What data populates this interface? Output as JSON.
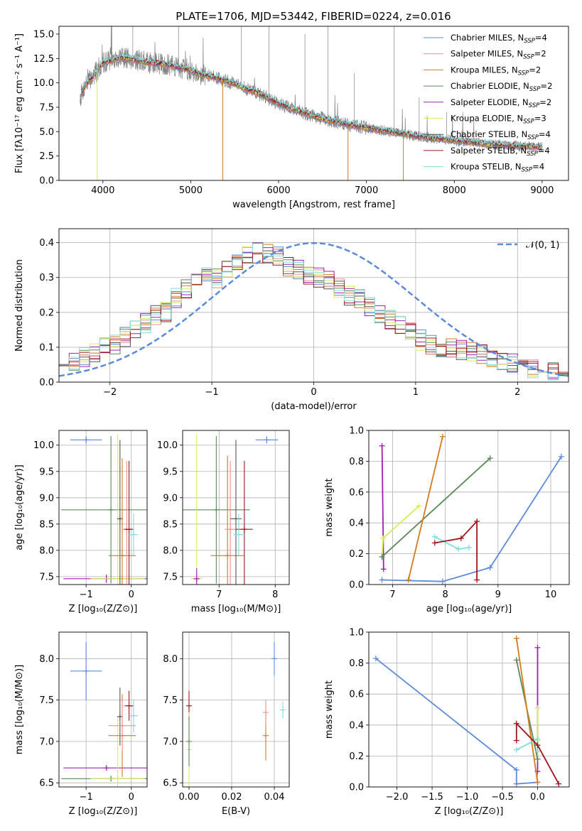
{
  "figure": {
    "title": "PLATE=1706, MJD=53442, FIBERID=0224, z=0.016"
  },
  "colors": {
    "Chabrier MILES": "#5b8bd8",
    "Salpeter MILES": "#f28e8e",
    "Kroupa MILES": "#d47a1e",
    "Chabrier ELODIE": "#5a8a5a",
    "Salpeter ELODIE": "#a020b0",
    "Kroupa ELODIE": "#d8ec5a",
    "Chabrier STELIB": "#555555",
    "Salpeter STELIB": "#a0161d",
    "Kroupa STELIB": "#80dede",
    "data_spectrum": "#808080",
    "normal_curve": "#5b8bd8"
  },
  "chart_data": [
    {
      "id": "spectrum",
      "type": "line",
      "xlabel": "wavelength [Angstrom, rest frame]",
      "ylabel": "Flux [fλ10⁻¹⁷ erg cm⁻² s⁻¹ A⁻¹]",
      "xlim": [
        3500,
        9300
      ],
      "ylim": [
        0,
        15.8
      ],
      "xticks": [
        4000,
        5000,
        6000,
        7000,
        8000,
        9000
      ],
      "yticks": [
        0.0,
        2.5,
        5.0,
        7.5,
        10.0,
        12.5,
        15.0
      ],
      "legend_position": "top-right",
      "grid": false,
      "continuum": {
        "x": [
          3740,
          3800,
          3900,
          4000,
          4100,
          4200,
          4300,
          4400,
          4500,
          4600,
          4700,
          4800,
          4900,
          5000,
          5100,
          5200,
          5300,
          5400,
          5500,
          5600,
          5800,
          6000,
          6200,
          6400,
          6600,
          6800,
          7000,
          7200,
          7400,
          7600,
          7800,
          8000,
          8200,
          8400,
          8600,
          8800,
          9000
        ],
        "y": [
          8.5,
          9.8,
          10.8,
          12.1,
          12.3,
          12.6,
          12.5,
          12.3,
          12.1,
          12.0,
          11.9,
          11.7,
          11.5,
          11.3,
          10.9,
          10.7,
          10.5,
          10.2,
          9.9,
          9.5,
          8.8,
          7.9,
          7.2,
          6.6,
          6.1,
          5.7,
          5.4,
          5.1,
          4.8,
          4.5,
          4.3,
          4.1,
          3.9,
          3.7,
          3.6,
          3.5,
          3.4
        ]
      },
      "absorption_lines": [
        {
          "x": 3934,
          "y": 0
        },
        {
          "x": 5365,
          "y": 0
        },
        {
          "x": 6790,
          "y": 0
        },
        {
          "x": 7420,
          "y": 0
        }
      ],
      "emission_lines": [
        {
          "x": 4102,
          "y": 15.8
        },
        {
          "x": 4340,
          "y": 15.8
        },
        {
          "x": 4861,
          "y": 15.8
        },
        {
          "x": 5577,
          "y": 15.8
        },
        {
          "x": 5890,
          "y": 15.8
        },
        {
          "x": 6300,
          "y": 15.0
        },
        {
          "x": 6563,
          "y": 15.8
        },
        {
          "x": 6863,
          "y": 11.0
        },
        {
          "x": 7316,
          "y": 15.8
        },
        {
          "x": 7600,
          "y": 8.5
        },
        {
          "x": 7913,
          "y": 7.0
        }
      ],
      "series": [
        {
          "name": "Chabrier MILES",
          "nssp": "4"
        },
        {
          "name": "Salpeter MILES",
          "nssp": "2"
        },
        {
          "name": "Kroupa MILES",
          "nssp": "2"
        },
        {
          "name": "Chabrier ELODIE",
          "nssp": "2"
        },
        {
          "name": "Salpeter ELODIE",
          "nssp": "2"
        },
        {
          "name": "Kroupa ELODIE",
          "nssp": "3"
        },
        {
          "name": "Chabrier STELIB",
          "nssp": "4"
        },
        {
          "name": "Salpeter STELIB",
          "nssp": "4"
        },
        {
          "name": "Kroupa STELIB",
          "nssp": "4"
        }
      ]
    },
    {
      "id": "residual_histogram",
      "type": "line",
      "xlabel": "(data-model)/error",
      "ylabel": "Normed distribution",
      "xlim": [
        -2.5,
        2.5
      ],
      "ylim": [
        0,
        0.44
      ],
      "xticks": [
        -2,
        -1,
        0,
        1,
        2
      ],
      "yticks": [
        0.0,
        0.1,
        0.2,
        0.3,
        0.4
      ],
      "grid": true,
      "legend_position": "top-right",
      "legend_label": "𝒩(0, 1)",
      "bins": [
        -2.5,
        2.5,
        50
      ],
      "histogram_envelope": [
        0.05,
        0.06,
        0.07,
        0.085,
        0.1,
        0.11,
        0.13,
        0.15,
        0.17,
        0.19,
        0.2,
        0.24,
        0.27,
        0.29,
        0.31,
        0.3,
        0.33,
        0.34,
        0.36,
        0.37,
        0.37,
        0.36,
        0.33,
        0.32,
        0.3,
        0.3,
        0.29,
        0.27,
        0.25,
        0.24,
        0.22,
        0.2,
        0.18,
        0.16,
        0.14,
        0.12,
        0.11,
        0.1,
        0.1,
        0.09,
        0.09,
        0.08,
        0.07,
        0.06,
        0.055,
        0.05,
        0.04,
        0.035,
        0.03,
        0.025
      ]
    },
    {
      "id": "age_vs_Z",
      "type": "scatter",
      "xlabel": "Z [log₁₀(Z/Z⊙)]",
      "ylabel": "age  [log₁₀(age/yr)]",
      "xlim": [
        -1.6,
        0.35
      ],
      "ylim": [
        7.35,
        10.28
      ],
      "xticks": [
        -1,
        0
      ],
      "yticks": [
        7.5,
        8.0,
        8.5,
        9.0,
        9.5,
        10.0
      ],
      "grid": true,
      "points": [
        {
          "series": "Chabrier MILES",
          "x": -1.0,
          "y": 10.1,
          "xerr": 0.35,
          "yerr": 0.07
        },
        {
          "series": "Chabrier ELODIE",
          "x": -0.45,
          "y": 8.77,
          "xerr": 1.1,
          "yerr": 1.4
        },
        {
          "series": "Salpeter ELODIE",
          "x": -0.55,
          "y": 7.46,
          "xerr": 0.95,
          "yerr": 0.08
        },
        {
          "series": "Kroupa ELODIE",
          "x": -0.3,
          "y": 7.46,
          "xerr": 0.6,
          "yerr": 2.75
        },
        {
          "series": "Chabrier STELIB",
          "x": -0.25,
          "y": 8.6,
          "xerr": 0.05,
          "yerr": 1.5
        },
        {
          "series": "Kroupa MILES",
          "x": -0.2,
          "y": 7.9,
          "xerr": 0.3,
          "yerr": 1.85
        },
        {
          "series": "Salpeter MILES",
          "x": -0.1,
          "y": 8.4,
          "xerr": 0.1,
          "yerr": 1.3
        },
        {
          "series": "Salpeter STELIB",
          "x": -0.05,
          "y": 8.4,
          "xerr": 0.1,
          "yerr": 1.3
        },
        {
          "series": "Kroupa STELIB",
          "x": 0.05,
          "y": 8.3,
          "xerr": 0.1,
          "yerr": 0.4
        }
      ]
    },
    {
      "id": "age_vs_mass",
      "type": "scatter",
      "xlabel": "mass [log₁₀(M/M⊙)]",
      "ylabel": "",
      "xlim": [
        6.35,
        8.25
      ],
      "ylim": [
        7.35,
        10.28
      ],
      "xticks": [
        7,
        8
      ],
      "yticks": [
        7.5,
        8.0,
        8.5,
        9.0,
        9.5,
        10.0
      ],
      "grid": true,
      "points": [
        {
          "series": "Chabrier MILES",
          "x": 7.85,
          "y": 10.1,
          "xerr": 0.2,
          "yerr": 0.07
        },
        {
          "series": "Chabrier ELODIE",
          "x": 6.95,
          "y": 8.77,
          "xerr": 0.6,
          "yerr": 1.4
        },
        {
          "series": "Kroupa ELODIE",
          "x": 6.6,
          "y": 7.46,
          "xerr": 0.1,
          "yerr": 2.75
        },
        {
          "series": "Salpeter ELODIE",
          "x": 6.6,
          "y": 7.46,
          "xerr": 0.05,
          "yerr": 0.2
        },
        {
          "series": "Kroupa MILES",
          "x": 7.15,
          "y": 7.9,
          "xerr": 0.3,
          "yerr": 1.9
        },
        {
          "series": "Salpeter MILES",
          "x": 7.2,
          "y": 8.4,
          "xerr": 0.1,
          "yerr": 1.3
        },
        {
          "series": "Chabrier STELIB",
          "x": 7.3,
          "y": 8.6,
          "xerr": 0.1,
          "yerr": 1.5
        },
        {
          "series": "Salpeter STELIB",
          "x": 7.45,
          "y": 8.4,
          "xerr": 0.15,
          "yerr": 1.3
        },
        {
          "series": "Kroupa STELIB",
          "x": 7.35,
          "y": 8.3,
          "xerr": 0.1,
          "yerr": 0.4
        }
      ]
    },
    {
      "id": "weight_vs_age",
      "type": "line",
      "xlabel": "age  [log₁₀(age/yr)]",
      "ylabel": "mass weight",
      "xlim": [
        6.55,
        10.35
      ],
      "ylim": [
        0,
        1.0
      ],
      "xticks": [
        7,
        8,
        9,
        10
      ],
      "yticks": [
        0.0,
        0.2,
        0.4,
        0.6,
        0.8,
        1.0
      ],
      "grid": true,
      "series": [
        {
          "name": "Chabrier MILES",
          "x": [
            6.8,
            7.95,
            8.85,
            10.2
          ],
          "y": [
            0.03,
            0.02,
            0.11,
            0.83
          ]
        },
        {
          "name": "Salpeter ELODIE",
          "x": [
            6.8,
            6.83
          ],
          "y": [
            0.9,
            0.1
          ]
        },
        {
          "name": "Kroupa ELODIE",
          "x": [
            6.8,
            6.82,
            7.5
          ],
          "y": [
            0.18,
            0.3,
            0.51
          ]
        },
        {
          "name": "Chabrier ELODIE",
          "x": [
            6.8,
            8.85
          ],
          "y": [
            0.18,
            0.82
          ]
        },
        {
          "name": "Kroupa MILES",
          "x": [
            7.3,
            7.95
          ],
          "y": [
            0.03,
            0.96
          ]
        },
        {
          "name": "Kroupa STELIB",
          "x": [
            7.8,
            8.25,
            8.45
          ],
          "y": [
            0.31,
            0.23,
            0.24
          ]
        },
        {
          "name": "Salpeter STELIB",
          "x": [
            7.8,
            8.3,
            8.6,
            8.6
          ],
          "y": [
            0.27,
            0.3,
            0.41,
            0.03
          ]
        }
      ]
    },
    {
      "id": "mass_vs_Z",
      "type": "scatter",
      "xlabel": "Z [log₁₀(Z/Z⊙)]",
      "ylabel": "mass [log₁₀(M/M⊙)]",
      "xlim": [
        -1.6,
        0.35
      ],
      "ylim": [
        6.45,
        8.32
      ],
      "xticks": [
        -1,
        0
      ],
      "yticks": [
        6.5,
        7.0,
        7.5,
        8.0
      ],
      "grid": true,
      "points": [
        {
          "series": "Chabrier MILES",
          "x": -1.0,
          "y": 7.85,
          "xerr": 0.35,
          "yerr": 0.35
        },
        {
          "series": "Salpeter ELODIE",
          "x": -0.55,
          "y": 6.68,
          "xerr": 0.95,
          "yerr": 0.03
        },
        {
          "series": "Chabrier ELODIE",
          "x": -0.45,
          "y": 6.55,
          "xerr": 1.1,
          "yerr": 0.03
        },
        {
          "series": "Kroupa ELODIE",
          "x": -0.3,
          "y": 6.55,
          "xerr": 0.6,
          "yerr": 0.75
        },
        {
          "series": "Chabrier STELIB",
          "x": -0.25,
          "y": 7.3,
          "xerr": 0.05,
          "yerr": 0.35
        },
        {
          "series": "Kroupa MILES",
          "x": -0.2,
          "y": 7.07,
          "xerr": 0.3,
          "yerr": 0.5
        },
        {
          "series": "Salpeter MILES",
          "x": -0.2,
          "y": 7.19,
          "xerr": 0.3,
          "yerr": 0.3
        },
        {
          "series": "Salpeter STELIB",
          "x": -0.05,
          "y": 7.43,
          "xerr": 0.1,
          "yerr": 0.18
        },
        {
          "series": "Kroupa STELIB",
          "x": 0.05,
          "y": 7.31,
          "xerr": 0.1,
          "yerr": 0.2
        }
      ]
    },
    {
      "id": "mass_vs_ebv",
      "type": "scatter",
      "xlabel": "E(B-V)",
      "ylabel": "",
      "xlim": [
        -0.003,
        0.047
      ],
      "ylim": [
        6.45,
        8.32
      ],
      "xticks": [
        0.0,
        0.02,
        0.04
      ],
      "yticks": [
        6.5,
        7.0,
        7.5,
        8.0
      ],
      "grid": true,
      "points": [
        {
          "series": "Salpeter STELIB",
          "x": 0.0,
          "y": 7.43,
          "xerr": 0,
          "yerr": 0.18
        },
        {
          "series": "Kroupa ELODIE",
          "x": 0.0,
          "y": 6.9,
          "xerr": 0,
          "yerr": 0.45
        },
        {
          "series": "Chabrier ELODIE",
          "x": 0.0,
          "y": 7.0,
          "xerr": 0,
          "yerr": 0.3
        },
        {
          "series": "Kroupa MILES",
          "x": 0.036,
          "y": 7.07,
          "xerr": 0,
          "yerr": 0.3
        },
        {
          "series": "Salpeter MILES",
          "x": 0.036,
          "y": 7.35,
          "xerr": 0,
          "yerr": 0.15
        },
        {
          "series": "Chabrier MILES",
          "x": 0.04,
          "y": 8.0,
          "xerr": 0,
          "yerr": 0.2
        },
        {
          "series": "Kroupa STELIB",
          "x": 0.044,
          "y": 7.38,
          "xerr": 0,
          "yerr": 0.1
        }
      ]
    },
    {
      "id": "weight_vs_Z",
      "type": "line",
      "xlabel": "Z [log₁₀(Z/Z⊙)]",
      "ylabel": "mass weight",
      "xlim": [
        -2.4,
        0.45
      ],
      "ylim": [
        0,
        1.0
      ],
      "xticks": [
        -2.0,
        -1.5,
        -1.0,
        -0.5,
        0.0
      ],
      "yticks": [
        0.0,
        0.2,
        0.4,
        0.6,
        0.8,
        1.0
      ],
      "grid": true,
      "series": [
        {
          "name": "Chabrier MILES",
          "x": [
            -2.3,
            -0.3,
            -0.3,
            0.0
          ],
          "y": [
            0.83,
            0.11,
            0.02,
            0.03
          ]
        },
        {
          "name": "Salpeter ELODIE",
          "x": [
            0.0,
            0.0
          ],
          "y": [
            0.9,
            0.1
          ]
        },
        {
          "name": "Kroupa ELODIE",
          "x": [
            0.0,
            0.0,
            0.0
          ],
          "y": [
            0.51,
            0.3,
            0.18
          ]
        },
        {
          "name": "Chabrier ELODIE",
          "x": [
            -0.3,
            0.0
          ],
          "y": [
            0.82,
            0.18
          ]
        },
        {
          "name": "Kroupa MILES",
          "x": [
            -0.3,
            0.0
          ],
          "y": [
            0.96,
            0.03
          ]
        },
        {
          "name": "Kroupa STELIB",
          "x": [
            -0.3,
            0.0,
            0.0
          ],
          "y": [
            0.24,
            0.31,
            0.23
          ]
        },
        {
          "name": "Salpeter STELIB",
          "x": [
            -0.3,
            -0.3,
            0.0,
            0.3
          ],
          "y": [
            0.3,
            0.41,
            0.27,
            0.02
          ]
        }
      ]
    }
  ]
}
